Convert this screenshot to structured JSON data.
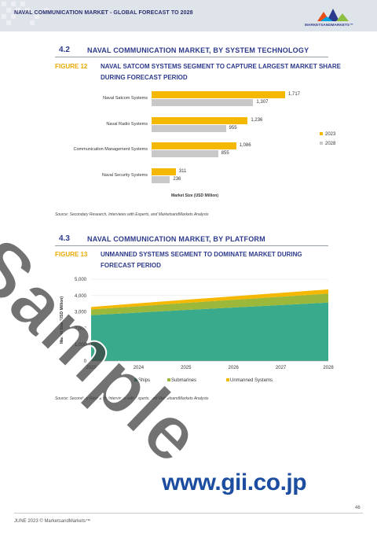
{
  "header": {
    "title": "NAVAL COMMUNICATION MARKET - GLOBAL FORECAST TO 2028",
    "logo_text": "MARKETSANDMARKETS™"
  },
  "section1": {
    "number": "4.2",
    "title": "NAVAL COMMUNICATION MARKET, BY SYSTEM TECHNOLOGY",
    "figure_label": "FIGURE 12",
    "figure_title_line1": "NAVAL SATCOM SYSTEMS SEGMENT TO CAPTURE LARGEST MARKET SHARE",
    "figure_title_line2": "DURING FORECAST PERIOD",
    "source": "Source: Secondary Research, Interviews with Experts, and MarketsandMarkets Analysis"
  },
  "section2": {
    "number": "4.3",
    "title": "NAVAL COMMUNICATION MARKET, BY PLATFORM",
    "figure_label": "FIGURE 13",
    "figure_title_line1": "UNMANNED SYSTEMS SEGMENT TO DOMINATE MARKET DURING",
    "figure_title_line2": "FORECAST PERIOD",
    "source": "Source: Secondary Research, Interviews with Experts, and MarketsandMarkets Analysis"
  },
  "colors": {
    "y2023": "#f5b800",
    "y2028": "#c8c8c8",
    "ships": "#3aaa8c",
    "submarines": "#9bb83a",
    "unmanned": "#f5b800"
  },
  "chart_data": [
    {
      "type": "bar",
      "orientation": "horizontal",
      "categories": [
        "Naval Satcom Systems",
        "Naval Radio Systems",
        "Communication Management Systems",
        "Naval Security Systems"
      ],
      "series": [
        {
          "name": "2023",
          "values": [
            1717,
            1236,
            1086,
            311
          ],
          "labels": [
            "1,717",
            "1,236",
            "1,086",
            "311"
          ]
        },
        {
          "name": "2028",
          "values": [
            1307,
            955,
            855,
            236
          ],
          "labels": [
            "1,307",
            "955",
            "855",
            "236"
          ]
        }
      ],
      "xlabel": "Market Size (USD Million)",
      "legend": "right"
    },
    {
      "type": "area",
      "stacked": true,
      "x": [
        "2023",
        "2024",
        "2025",
        "2026",
        "2027",
        "2028"
      ],
      "series": [
        {
          "name": "Ships",
          "values": [
            2800,
            2960,
            3120,
            3270,
            3420,
            3570
          ]
        },
        {
          "name": "Submarines",
          "values": [
            350,
            390,
            430,
            470,
            510,
            550
          ]
        },
        {
          "name": "Unmanned Systems",
          "values": [
            150,
            175,
            195,
            215,
            235,
            255
          ]
        }
      ],
      "ylabel": "Market Size (USD Million)",
      "yticks": [
        "0",
        "1,000",
        "2,000",
        "3,000",
        "4,000",
        "5,000"
      ],
      "ylim": [
        0,
        5000
      ],
      "grid": true,
      "legend": "bottom"
    }
  ],
  "footer": {
    "date": "JUNE 2023 © MarketsandMarkets™",
    "page": "46",
    "site": "www.gii.co.jp",
    "watermark": "Sample"
  }
}
